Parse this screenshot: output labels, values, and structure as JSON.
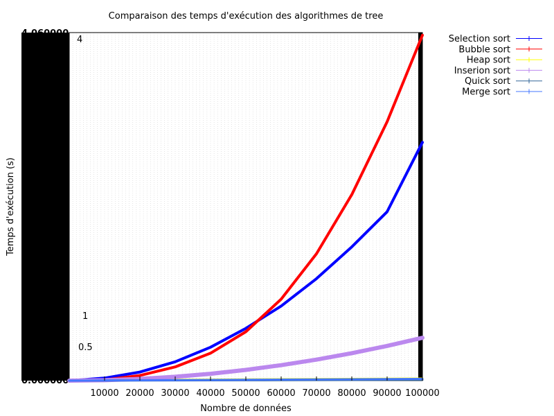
{
  "chart_data": {
    "type": "line",
    "title": "Comparaison des temps d'exécution des algorithmes de tree",
    "xlabel": "Nombre de données",
    "ylabel": "Temps d'exécution (s)",
    "xlim": [
      0,
      100000
    ],
    "ylim": [
      0,
      4.06
    ],
    "x_ticks": [
      10000,
      20000,
      30000,
      40000,
      50000,
      60000,
      70000,
      80000,
      90000,
      100000
    ],
    "y_tick_labels": [
      {
        "value": 4,
        "label": "4"
      },
      {
        "value": 1,
        "label": "1"
      },
      {
        "value": 0.5,
        "label": "0.5"
      }
    ],
    "y_axis_edge_labels": [
      "4.060000",
      "0.000000"
    ],
    "grid": true,
    "legend_position": "outside-top-right",
    "series": [
      {
        "name": "Selection sort",
        "color": "#0000ff",
        "points": [
          [
            0,
            0
          ],
          [
            10000,
            0.03
          ],
          [
            20000,
            0.1
          ],
          [
            30000,
            0.22
          ],
          [
            40000,
            0.39
          ],
          [
            50000,
            0.61
          ],
          [
            60000,
            0.87
          ],
          [
            70000,
            1.19
          ],
          [
            80000,
            1.56
          ],
          [
            90000,
            1.97
          ],
          [
            100000,
            2.78
          ]
        ]
      },
      {
        "name": "Bubble sort",
        "color": "#ff0000",
        "points": [
          [
            0,
            0
          ],
          [
            10000,
            0.01
          ],
          [
            20000,
            0.06
          ],
          [
            30000,
            0.16
          ],
          [
            40000,
            0.32
          ],
          [
            50000,
            0.57
          ],
          [
            60000,
            0.95
          ],
          [
            70000,
            1.48
          ],
          [
            80000,
            2.17
          ],
          [
            90000,
            3.02
          ],
          [
            100000,
            4.03
          ]
        ]
      },
      {
        "name": "Heap sort",
        "color": "#ffff00",
        "points": [
          [
            0,
            0
          ],
          [
            10000,
            0.005
          ],
          [
            20000,
            0.008
          ],
          [
            30000,
            0.01
          ],
          [
            40000,
            0.012
          ],
          [
            50000,
            0.014
          ],
          [
            60000,
            0.016
          ],
          [
            70000,
            0.018
          ],
          [
            80000,
            0.02
          ],
          [
            90000,
            0.022
          ],
          [
            100000,
            0.024
          ]
        ]
      },
      {
        "name": "Inserion sort",
        "color": "#bb88ee",
        "points": [
          [
            0,
            0
          ],
          [
            10000,
            0.005
          ],
          [
            20000,
            0.02
          ],
          [
            30000,
            0.045
          ],
          [
            40000,
            0.08
          ],
          [
            50000,
            0.125
          ],
          [
            60000,
            0.18
          ],
          [
            70000,
            0.245
          ],
          [
            80000,
            0.32
          ],
          [
            90000,
            0.405
          ],
          [
            100000,
            0.5
          ]
        ]
      },
      {
        "name": "Quick sort",
        "color": "#336699",
        "points": [
          [
            0,
            0
          ],
          [
            10000,
            0.001
          ],
          [
            20000,
            0.002
          ],
          [
            30000,
            0.003
          ],
          [
            40000,
            0.004
          ],
          [
            50000,
            0.005
          ],
          [
            60000,
            0.006
          ],
          [
            70000,
            0.007
          ],
          [
            80000,
            0.008
          ],
          [
            90000,
            0.009
          ],
          [
            100000,
            0.01
          ]
        ]
      },
      {
        "name": "Merge sort",
        "color": "#4477ff",
        "points": [
          [
            0,
            0
          ],
          [
            10000,
            0.002
          ],
          [
            20000,
            0.004
          ],
          [
            30000,
            0.006
          ],
          [
            40000,
            0.008
          ],
          [
            50000,
            0.01
          ],
          [
            60000,
            0.012
          ],
          [
            70000,
            0.014
          ],
          [
            80000,
            0.016
          ],
          [
            90000,
            0.018
          ],
          [
            100000,
            0.02
          ]
        ]
      }
    ]
  }
}
